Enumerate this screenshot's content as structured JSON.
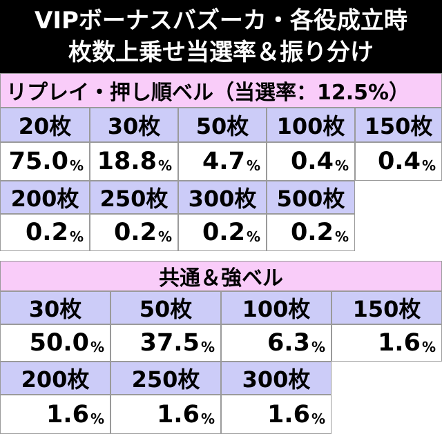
{
  "title": {
    "line1": "VIPボーナスバズーカ・各役成立時",
    "line2": "枚数上乗せ当選率＆振り分け"
  },
  "section1": {
    "header": "リプレイ・押し順ベル（当選率：12.5%）",
    "rows": [
      {
        "labels": [
          "20枚",
          "30枚",
          "50枚",
          "100枚",
          "150枚"
        ],
        "values": [
          "75.0",
          "18.8",
          "4.7",
          "0.4",
          "0.4"
        ]
      },
      {
        "labels": [
          "200枚",
          "250枚",
          "300枚",
          "500枚"
        ],
        "values": [
          "0.2",
          "0.2",
          "0.2",
          "0.2"
        ]
      }
    ]
  },
  "section2": {
    "header": "共通＆強ベル",
    "rows": [
      {
        "labels": [
          "30枚",
          "50枚",
          "100枚",
          "150枚"
        ],
        "values": [
          "50.0",
          "37.5",
          "6.3",
          "1.6"
        ]
      },
      {
        "labels": [
          "200枚",
          "250枚",
          "300枚"
        ],
        "values": [
          "1.6",
          "1.6",
          "1.6"
        ]
      }
    ]
  },
  "percent_sign": "%",
  "colors": {
    "title_bg": "#000000",
    "section_header_bg": "#f9ccf9",
    "label_cell_bg": "#ccccf8",
    "value_cell_bg": "#ffffff"
  }
}
